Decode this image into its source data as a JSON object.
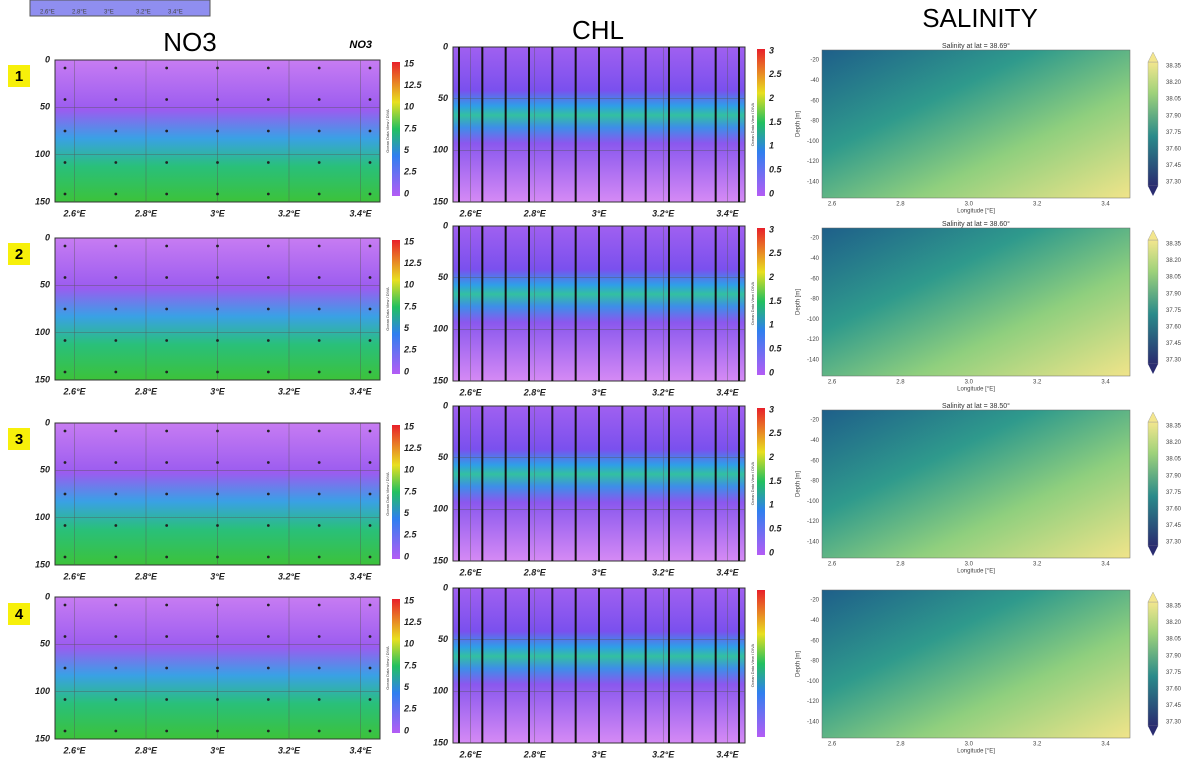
{
  "column_titles": [
    "NO3",
    "CHL",
    "SALINITY"
  ],
  "row_labels": [
    "1",
    "2",
    "3",
    "4"
  ],
  "top_strip_ticks": [
    "2.6°E",
    "2.8°E",
    "3°E",
    "3.2°E",
    "3.4°E"
  ],
  "no3": {
    "inset_label": "NO3",
    "depth_ticks": [
      "0",
      "50",
      "100",
      "150"
    ],
    "lon_ticks": [
      "2.6°E",
      "2.8°E",
      "3°E",
      "3.2°E",
      "3.4°E"
    ],
    "colorbar_ticks": [
      "15",
      "12.5",
      "10",
      "7.5",
      "5",
      "2.5",
      "0"
    ],
    "colorbar_title": "Ocean Data View / DIVA"
  },
  "chl": {
    "depth_ticks": [
      "0",
      "50",
      "100",
      "150"
    ],
    "lon_ticks": [
      "2.6°E",
      "2.8°E",
      "3°E",
      "3.2°E",
      "3.4°E"
    ],
    "colorbar_ticks": [
      "3",
      "2.5",
      "2",
      "1.5",
      "1",
      "0.5",
      "0"
    ],
    "colorbar_title": "Ocean Data View / DIVA"
  },
  "salinity": {
    "panel_titles": [
      "Salinity at lat = 38.69°",
      "Salinity at lat = 38.60°",
      "Salinity at lat = 38.50°"
    ],
    "depth_ticks": [
      "-20",
      "-40",
      "-60",
      "-80",
      "-100",
      "-120",
      "-140"
    ],
    "lon_ticks": [
      "2.6",
      "2.8",
      "3.0",
      "3.2",
      "3.4"
    ],
    "colorbar_ticks": [
      "38.35",
      "38.20",
      "38.05",
      "37.90",
      "37.75",
      "37.60",
      "37.45",
      "37.30"
    ],
    "x_label": "Longitude [°E]",
    "y_label": "Depth [m]"
  }
}
